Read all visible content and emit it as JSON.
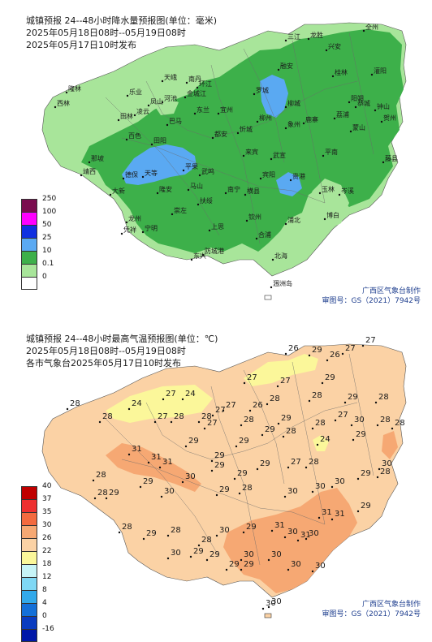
{
  "precip_panel": {
    "title_lines": [
      "城镇预报 24--48小时降水量预报图(单位：毫米)",
      "2025年05月18日08时--05月19日08时",
      "2025年05月17日10时发布"
    ],
    "credit_lines": [
      "广西区气象台制作",
      "审图号：GS（2021）7942号"
    ],
    "legend": [
      {
        "label": "250",
        "color": "#7a0c4e"
      },
      {
        "label": "100",
        "color": "#ff00ff"
      },
      {
        "label": "50",
        "color": "#1030e0"
      },
      {
        "label": "25",
        "color": "#5aa9f2"
      },
      {
        "label": "10",
        "color": "#3db04a"
      },
      {
        "label": "0.1",
        "color": "#a8e59a"
      },
      {
        "label": "0",
        "color": "#ffffff"
      }
    ],
    "cities": [
      "三江",
      "龙胜",
      "兴安",
      "全州",
      "隆林",
      "天峨",
      "南丹",
      "环江",
      "融安",
      "桂林",
      "灌阳",
      "西林",
      "乐业",
      "凤山",
      "金城江",
      "罗城",
      "柳城",
      "阳朔",
      "恭城",
      "田林",
      "凌云",
      "东兰",
      "巴马",
      "河池",
      "宜州",
      "鹿寨",
      "荔浦",
      "钟山",
      "百色",
      "田阳",
      "都安",
      "忻城",
      "柳州",
      "象州",
      "蒙山",
      "贺州",
      "那坡",
      "德保",
      "平果",
      "马山",
      "来宾",
      "武宣",
      "平南",
      "藤县",
      "靖西",
      "天等",
      "隆安",
      "武鸣",
      "宾阳",
      "贵港",
      "玉林",
      "岑溪",
      "大新",
      "南宁",
      "横县",
      "浦北",
      "博白",
      "龙州",
      "崇左",
      "扶绥",
      "上思",
      "钦州",
      "合浦",
      "凭祥",
      "宁明",
      "防城港",
      "东兴",
      "北海",
      "涠洲岛"
    ]
  },
  "temp_panel": {
    "title_lines": [
      "城镇预报 24--48小时最高气温预报图(单位：℃)",
      "2025年05月18日08时--05月19日08时",
      "各市气象台2025年05月17日10时发布"
    ],
    "credit_lines": [
      "广西区气象台制作",
      "审图号：GS（2021）7942号"
    ],
    "legend": [
      {
        "label": "40",
        "color": "#c00000"
      },
      {
        "label": "37",
        "color": "#ee3030"
      },
      {
        "label": "35",
        "color": "#f36a3f"
      },
      {
        "label": "30",
        "color": "#f6a873"
      },
      {
        "label": "26",
        "color": "#fbd2a5"
      },
      {
        "label": "22",
        "color": "#fbf79a"
      },
      {
        "label": "18",
        "color": "#c7f4f7"
      },
      {
        "label": "12",
        "color": "#7fd8f5"
      },
      {
        "label": "8",
        "color": "#32a9ea"
      },
      {
        "label": "4",
        "color": "#1470d8"
      },
      {
        "label": "0",
        "color": "#0a3cc0"
      },
      {
        "label": "-16",
        "color": "#0018a8"
      }
    ],
    "temps": [
      "26",
      "29",
      "27",
      "27",
      "26",
      "29",
      "27",
      "27",
      "28",
      "24",
      "27",
      "24",
      "27",
      "27",
      "27",
      "26",
      "28",
      "28",
      "29",
      "28",
      "28",
      "27",
      "28",
      "28",
      "28",
      "29",
      "28",
      "27",
      "30",
      "28",
      "31",
      "31",
      "29",
      "29",
      "29",
      "29",
      "28",
      "24",
      "29",
      "28",
      "28",
      "31",
      "30",
      "29",
      "29",
      "29",
      "27",
      "30",
      "28",
      "28",
      "28",
      "29",
      "29",
      "29",
      "28",
      "30",
      "30",
      "30",
      "29",
      "30",
      "31",
      "31",
      "29",
      "28",
      "29",
      "28",
      "30",
      "29",
      "31",
      "30",
      "31",
      "30",
      "30",
      "29",
      "29",
      "28",
      "30",
      "30",
      "29",
      "29",
      "30",
      "30",
      "30",
      "30"
    ]
  }
}
